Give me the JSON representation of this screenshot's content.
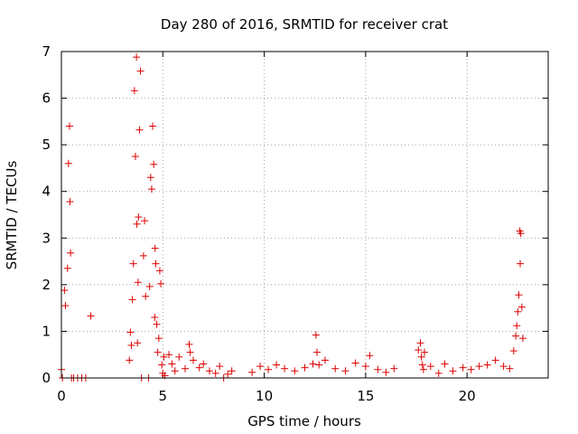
{
  "chart_data": {
    "type": "scatter",
    "title": "Day 280 of 2016, SRMTID for receiver crat",
    "xlabel": "GPS time / hours",
    "ylabel": "SRMTID / TECUs",
    "xlim": [
      0,
      24
    ],
    "ylim": [
      0,
      7
    ],
    "xticks": [
      0,
      5,
      10,
      15,
      20
    ],
    "yticks": [
      0,
      1,
      2,
      3,
      4,
      5,
      6,
      7
    ],
    "grid": true,
    "marker": "+",
    "color": "#dd0000",
    "series": [
      {
        "name": "SRMTID",
        "x": [
          0.0,
          0.05,
          0.15,
          0.2,
          0.3,
          0.35,
          0.4,
          0.42,
          0.45,
          0.5,
          0.6,
          0.8,
          1.0,
          1.2,
          1.45,
          3.35,
          3.4,
          3.45,
          3.5,
          3.55,
          3.6,
          3.65,
          3.7,
          3.72,
          3.75,
          3.78,
          3.8,
          3.85,
          3.9,
          3.95,
          4.05,
          4.1,
          4.15,
          4.3,
          4.35,
          4.4,
          4.45,
          4.5,
          4.55,
          4.6,
          4.62,
          4.65,
          4.7,
          4.75,
          4.8,
          4.85,
          4.9,
          4.95,
          5.0,
          5.05,
          5.1,
          5.3,
          5.45,
          5.6,
          5.8,
          6.1,
          6.3,
          6.35,
          6.5,
          6.8,
          7.0,
          7.3,
          7.6,
          7.8,
          8.0,
          8.2,
          8.4,
          9.4,
          9.8,
          10.2,
          10.6,
          11.0,
          11.5,
          12.0,
          12.4,
          12.55,
          12.6,
          12.7,
          13.0,
          13.5,
          14.0,
          14.5,
          15.0,
          15.2,
          15.6,
          16.0,
          16.4,
          17.6,
          17.7,
          17.75,
          17.8,
          17.85,
          17.9,
          18.2,
          18.6,
          18.9,
          19.3,
          19.8,
          20.2,
          20.6,
          21.0,
          21.4,
          21.8,
          22.1,
          22.3,
          22.4,
          22.45,
          22.5,
          22.55,
          22.6,
          22.62,
          22.65,
          22.7,
          22.75
        ],
        "y": [
          0.18,
          0.0,
          1.88,
          1.55,
          2.35,
          4.6,
          5.4,
          3.78,
          2.68,
          0.0,
          0.0,
          0.0,
          0.0,
          0.0,
          1.33,
          0.38,
          0.98,
          0.7,
          1.68,
          2.45,
          6.16,
          4.75,
          6.88,
          3.3,
          0.75,
          2.05,
          3.45,
          5.32,
          6.58,
          0.0,
          2.62,
          3.37,
          1.75,
          0.0,
          1.96,
          4.3,
          4.05,
          5.4,
          4.58,
          1.3,
          2.78,
          2.45,
          1.15,
          0.55,
          0.85,
          2.3,
          2.02,
          0.28,
          0.1,
          0.45,
          0.05,
          0.5,
          0.3,
          0.15,
          0.45,
          0.2,
          0.72,
          0.55,
          0.38,
          0.22,
          0.3,
          0.15,
          0.1,
          0.25,
          0.0,
          0.08,
          0.15,
          0.12,
          0.25,
          0.18,
          0.28,
          0.2,
          0.15,
          0.22,
          0.3,
          0.92,
          0.55,
          0.28,
          0.38,
          0.2,
          0.15,
          0.32,
          0.25,
          0.48,
          0.18,
          0.12,
          0.2,
          0.6,
          0.75,
          0.45,
          0.28,
          0.18,
          0.55,
          0.25,
          0.1,
          0.3,
          0.15,
          0.22,
          0.18,
          0.25,
          0.28,
          0.38,
          0.25,
          0.2,
          0.58,
          0.9,
          1.12,
          1.42,
          1.78,
          3.15,
          2.45,
          3.1,
          1.52,
          0.85
        ]
      }
    ]
  }
}
